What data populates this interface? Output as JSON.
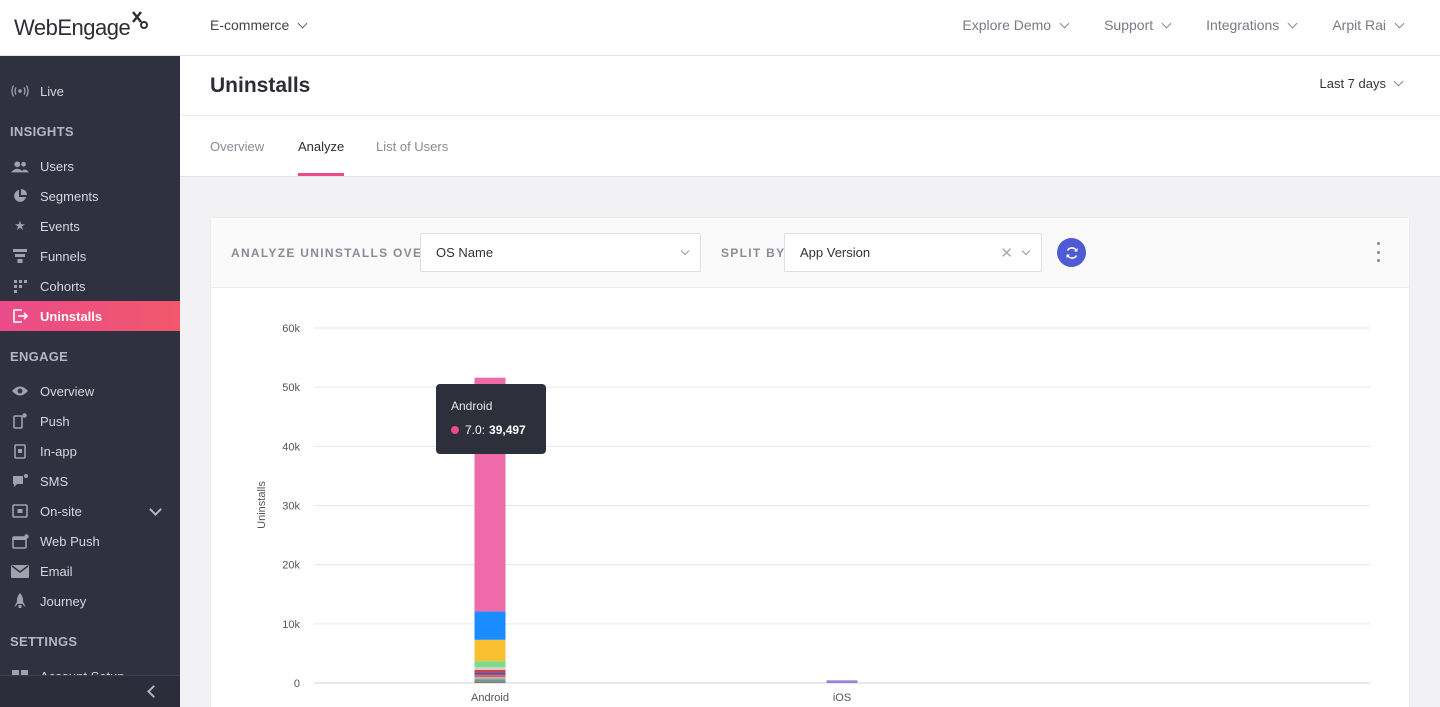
{
  "app": {
    "logo_text": "WebEngage",
    "project": "E-commerce"
  },
  "topnav": {
    "items": [
      "Explore Demo",
      "Support",
      "Integrations",
      "Arpit Rai"
    ]
  },
  "sidebar": {
    "live": "Live",
    "sections": {
      "insights": "INSIGHTS",
      "engage": "ENGAGE",
      "settings": "SETTINGS"
    },
    "insights_items": [
      "Users",
      "Segments",
      "Events",
      "Funnels",
      "Cohorts",
      "Uninstalls"
    ],
    "engage_items": [
      "Overview",
      "Push",
      "In-app",
      "SMS",
      "On-site",
      "Web Push",
      "Email",
      "Journey"
    ],
    "settings_items": [
      "Account Setup"
    ]
  },
  "page": {
    "title": "Uninstalls",
    "date_range": "Last 7 days",
    "tabs": [
      "Overview",
      "Analyze",
      "List of Users"
    ],
    "active_tab": "Analyze"
  },
  "controls": {
    "analyze_label": "ANALYZE UNINSTALLS OVER",
    "analyze_value": "OS Name",
    "split_label": "SPLIT BY",
    "split_value": "App Version"
  },
  "colors": {
    "accent": "#ea4c89",
    "sidebar_bg": "#2f3140",
    "refresh": "#4f5bd5"
  },
  "chart_data": {
    "type": "bar",
    "stacked": true,
    "ylabel": "Uninstalls",
    "xlabel": "",
    "ylim": [
      0,
      60000
    ],
    "yticks": [
      "0",
      "10k",
      "20k",
      "30k",
      "40k",
      "50k",
      "60k"
    ],
    "categories": [
      "Android",
      "iOS"
    ],
    "series": [
      {
        "name": "",
        "color": "#8a7560",
        "values": [
          300,
          0
        ]
      },
      {
        "name": "",
        "color": "#5aa0a0",
        "values": [
          350,
          0
        ]
      },
      {
        "name": "",
        "color": "#b0b0b8",
        "values": [
          350,
          0
        ]
      },
      {
        "name": "",
        "color": "#e06060",
        "values": [
          400,
          0
        ]
      },
      {
        "name": "",
        "color": "#5a4a9a",
        "values": [
          400,
          0
        ]
      },
      {
        "name": "",
        "color": "#cc4444",
        "values": [
          400,
          0
        ]
      },
      {
        "name": "",
        "color": "#cfcfcf",
        "values": [
          500,
          0
        ]
      },
      {
        "name": "",
        "color": "#7edc8a",
        "values": [
          1000,
          0
        ]
      },
      {
        "name": "",
        "color": "#f9c02f",
        "values": [
          3600,
          0
        ]
      },
      {
        "name": "",
        "color": "#1a8cff",
        "values": [
          4800,
          0
        ]
      },
      {
        "name": "7.0",
        "color": "#ef6aa8",
        "values": [
          39497,
          0
        ]
      },
      {
        "name": "",
        "color": "#9a82d8",
        "values": [
          0,
          450
        ]
      }
    ],
    "tooltip": {
      "category": "Android",
      "series": "7.0",
      "value": "39,497"
    }
  }
}
